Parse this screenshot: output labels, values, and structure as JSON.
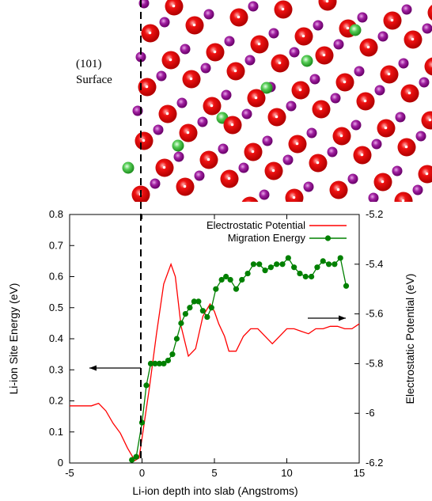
{
  "figure": {
    "surface_label_line1": "(101)",
    "surface_label_line2": "Surface"
  },
  "chart_data": {
    "type": "line",
    "xlabel": "Li-ion depth into slab (Angstroms)",
    "ylabel": "Li-ion Site Energy (eV)",
    "y2label": "Electrostatic Potential (eV)",
    "xlim": [
      -5,
      15
    ],
    "ylim": [
      0,
      0.8
    ],
    "y2lim": [
      -6.2,
      -5.2
    ],
    "x_ticks": [
      "-5",
      "0",
      "5",
      "10",
      "15"
    ],
    "y_ticks": [
      "0",
      "0.1",
      "0.2",
      "0.3",
      "0.4",
      "0.5",
      "0.6",
      "0.7",
      "0.8"
    ],
    "y2_ticks": [
      "-5.2",
      "-5.4",
      "-5.6",
      "-5.8",
      "-6",
      "-6.2"
    ],
    "legend_position": "top-right",
    "surface_marker_x": -0.1,
    "series": [
      {
        "name": "Electrostatic Potential",
        "axis": "right",
        "color": "#ff0000",
        "marker": "none",
        "x": [
          -5,
          -3.5,
          -3.0,
          -2.5,
          -2.0,
          -1.5,
          -1.0,
          -0.5,
          -0.2,
          0,
          0.5,
          1.0,
          1.5,
          2.0,
          2.3,
          2.7,
          3.2,
          3.7,
          4.2,
          4.7,
          5.0,
          5.3,
          5.7,
          6.0,
          6.5,
          7.0,
          7.5,
          8.0,
          8.5,
          9.0,
          9.5,
          10.0,
          10.5,
          11.0,
          11.5,
          12.0,
          12.5,
          13.0,
          13.5,
          14.0,
          14.5,
          15.0
        ],
        "y": [
          -5.97,
          -5.97,
          -5.96,
          -5.99,
          -6.04,
          -6.08,
          -6.14,
          -6.19,
          -6.18,
          -6.1,
          -5.9,
          -5.68,
          -5.48,
          -5.4,
          -5.45,
          -5.65,
          -5.77,
          -5.74,
          -5.61,
          -5.56,
          -5.59,
          -5.64,
          -5.69,
          -5.75,
          -5.75,
          -5.69,
          -5.66,
          -5.66,
          -5.69,
          -5.72,
          -5.69,
          -5.66,
          -5.66,
          -5.67,
          -5.68,
          -5.66,
          -5.66,
          -5.65,
          -5.65,
          -5.66,
          -5.66,
          -5.64
        ]
      },
      {
        "name": "Migration Energy",
        "axis": "left",
        "color": "#008000",
        "marker": "circle",
        "x": [
          -0.7,
          -0.4,
          0.0,
          0.3,
          0.6,
          0.9,
          1.2,
          1.5,
          1.8,
          2.1,
          2.4,
          2.7,
          3.0,
          3.3,
          3.6,
          3.9,
          4.2,
          4.5,
          4.8,
          5.1,
          5.5,
          5.8,
          6.1,
          6.5,
          6.9,
          7.3,
          7.7,
          8.1,
          8.5,
          8.9,
          9.3,
          9.7,
          10.1,
          10.5,
          10.9,
          11.3,
          11.7,
          12.1,
          12.5,
          12.9,
          13.3,
          13.7,
          14.1
        ],
        "y": [
          0.01,
          0.02,
          0.13,
          0.25,
          0.32,
          0.32,
          0.32,
          0.32,
          0.33,
          0.35,
          0.4,
          0.45,
          0.48,
          0.5,
          0.52,
          0.52,
          0.49,
          0.47,
          0.5,
          0.56,
          0.59,
          0.6,
          0.59,
          0.56,
          0.59,
          0.61,
          0.64,
          0.64,
          0.62,
          0.63,
          0.64,
          0.64,
          0.66,
          0.63,
          0.61,
          0.6,
          0.6,
          0.63,
          0.65,
          0.64,
          0.64,
          0.66,
          0.57
        ]
      }
    ]
  }
}
